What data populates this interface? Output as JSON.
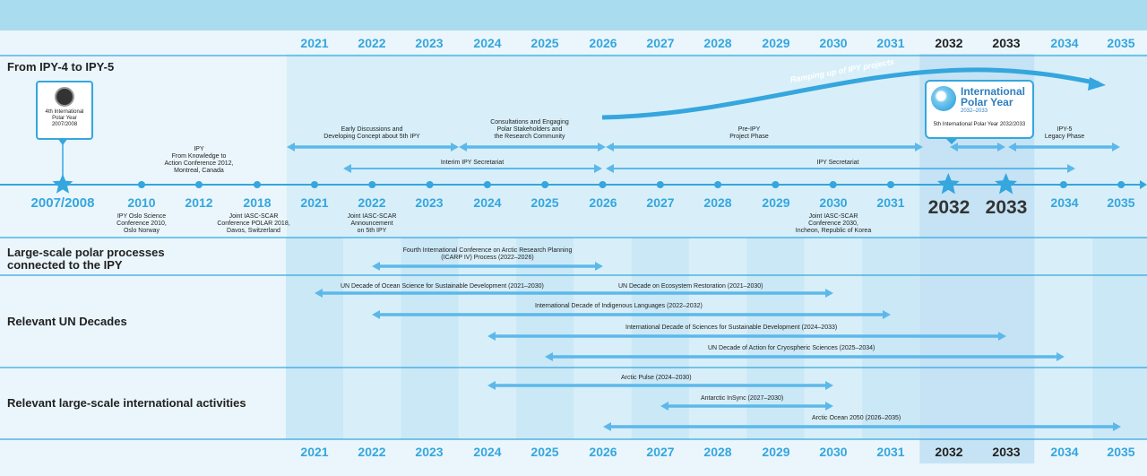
{
  "years": [
    "2021",
    "2022",
    "2023",
    "2024",
    "2025",
    "2026",
    "2027",
    "2028",
    "2029",
    "2030",
    "2031",
    "2032",
    "2033",
    "2034",
    "2035"
  ],
  "timeline_labels": [
    "2007/2008",
    "2010",
    "2012",
    "2018",
    "2021",
    "2022",
    "2023",
    "2024",
    "2025",
    "2026",
    "2027",
    "2028",
    "2029",
    "2030",
    "2031",
    "2032",
    "2033",
    "2034",
    "2035"
  ],
  "sections": {
    "ipy": "From IPY-4 to IPY-5",
    "large_scale": "Large-scale polar processes\nconnected to the IPY",
    "un_decades": "Relevant UN Decades",
    "intl": "Relevant large-scale international activities"
  },
  "ipy4_box": "4th International\nPolar Year\n2007/2008",
  "ipy5_logo": {
    "line1": "International",
    "line2": "Polar Year",
    "line3": "2032–2033",
    "caption": "5th International Polar Year 2032/2033"
  },
  "ramping": "Ramping up of IPY projects",
  "events_above": {
    "ipy_conf": "IPY\nFrom Knowledge to\nAction Conference 2012,\nMontreal, Canada"
  },
  "events_below": {
    "oslo": "IPY Oslo Science\nConference 2010,\nOslo Norway",
    "polar2018": "Joint IASC-SCAR\nConference POLAR 2018,\nDavos, Switzerland",
    "announce": "Joint IASC-SCAR\nAnnouncement\non 5th IPY",
    "incheon": "Joint IASC-SCAR\nConference 2030,\nIncheon, Republic of Korea"
  },
  "phases": {
    "early": "Early Discussions and\nDeveloping Concept about 5th IPY",
    "consult": "Consultations and Engaging\nPolar Stakeholders and\nthe Research Community",
    "preipy": "Pre-IPY\nProject Phase",
    "legacy": "IPY-5\nLegacy Phase",
    "interim": "Interim IPY Secretariat",
    "secretariat": "IPY Secretariat"
  },
  "bars": {
    "icarp": "Fourth International Conference on Arctic Research Planning\n(ICARP IV) Process (2022–2026)",
    "ocean": "UN Decade of Ocean Science for Sustainable Development (2021–2030)",
    "ecosystem": "UN Decade on Ecosystem Restoration (2021–2030)",
    "indigenous": "International Decade of Indigenous Languages (2022–2032)",
    "sciences": "International Decade of Sciences for Sustainable Development (2024–2033)",
    "cryo": "UN Decade of Action for Cryospheric Sciences (2025–2034)",
    "pulse": "Arctic Pulse (2024–2030)",
    "insync": "Antarctic InSync (2027–2030)",
    "ocean2050": "Arctic Ocean 2050 (2026–2035)"
  },
  "colors": {
    "accent": "#35a6de",
    "arrow": "#5db8ea",
    "band": "#a9dcef",
    "highlight": "#c5e3f4"
  }
}
